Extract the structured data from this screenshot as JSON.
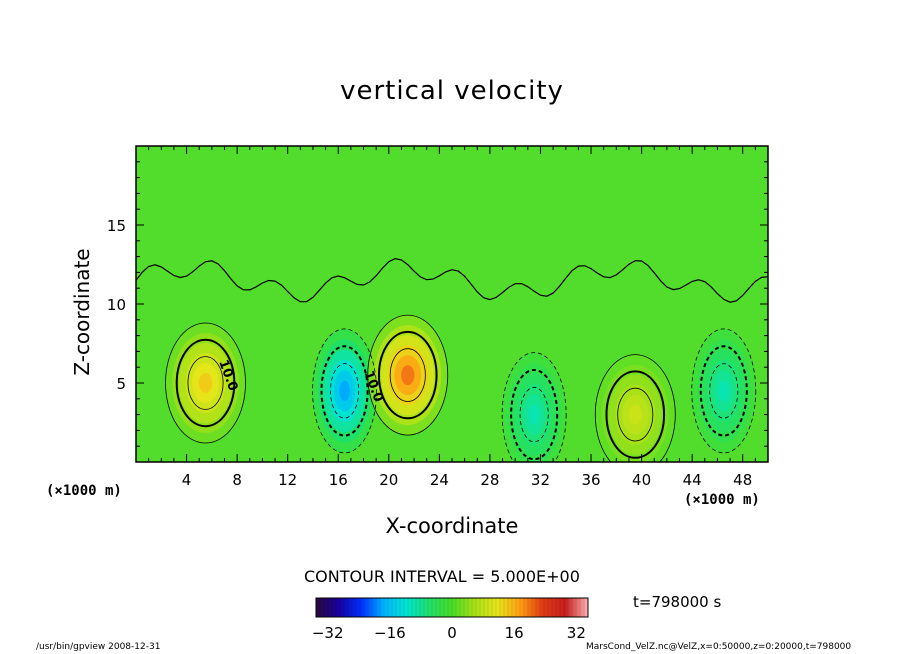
{
  "chart_data": {
    "type": "heatmap",
    "title": "vertical velocity",
    "xlabel": "X-coordinate",
    "ylabel": "Z-coordinate",
    "x_unit": "(×1000 m)",
    "x_ticks": [
      4,
      8,
      12,
      16,
      20,
      24,
      28,
      32,
      36,
      40,
      44,
      48
    ],
    "y_ticks": [
      5,
      10,
      15
    ],
    "xlim": [
      0,
      50
    ],
    "ylim": [
      0,
      20
    ],
    "contour_interval": "CONTOUR INTERVAL = 5.000E+00",
    "contour_labels": [
      {
        "x": 7,
        "z": 5.4,
        "text": "10.0"
      },
      {
        "x": 18.5,
        "z": 4.7,
        "text": "10.0"
      }
    ],
    "colorbar": {
      "ticks": [
        -32,
        -16,
        0,
        16,
        32
      ],
      "range": [
        -35,
        35
      ],
      "colors": [
        "#2a0a3a",
        "#1a00a0",
        "#0030ff",
        "#00b4ff",
        "#00e6d2",
        "#20e06a",
        "#48dd28",
        "#a8e018",
        "#e6e61a",
        "#ffa014",
        "#e03c14",
        "#c81e1e",
        "#ffb4b4"
      ]
    },
    "features": [
      {
        "kind": "updraft",
        "x": 5.5,
        "z": 5.0,
        "peak": 14
      },
      {
        "kind": "downdraft",
        "x": 16.5,
        "z": 4.5,
        "peak": -18
      },
      {
        "kind": "updraft",
        "x": 21.5,
        "z": 5.5,
        "peak": 20
      },
      {
        "kind": "downdraft",
        "x": 31.5,
        "z": 3.0,
        "peak": -10
      },
      {
        "kind": "updraft",
        "x": 39.5,
        "z": 3.0,
        "peak": 9
      },
      {
        "kind": "downdraft",
        "x": 46.5,
        "z": 4.5,
        "peak": -10
      }
    ]
  },
  "time": "t=798000 s",
  "footer": {
    "left": "/usr/bin/gpview   2008-12-31",
    "right": "MarsCond_VelZ.nc@VelZ,x=0:50000,z=0:20000,t=798000"
  },
  "colors": {
    "background_field": "#52dc2c",
    "axis": "#000000"
  }
}
